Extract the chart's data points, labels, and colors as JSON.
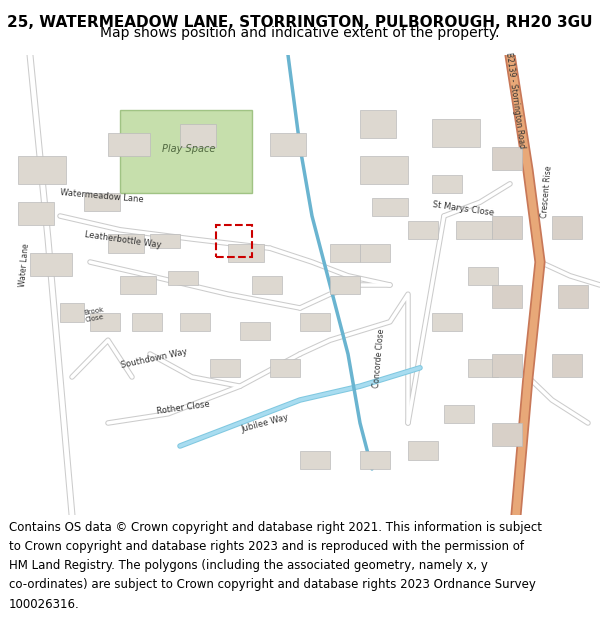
{
  "title_line1": "25, WATERMEADOW LANE, STORRINGTON, PULBOROUGH, RH20 3GU",
  "title_line2": "Map shows position and indicative extent of the property.",
  "footer_text": "Contains OS data © Crown copyright and database right 2021. This information is subject to Crown copyright and database rights 2023 and is reproduced with the permission of HM Land Registry. The polygons (including the associated geometry, namely x, y co-ordinates) are subject to Crown copyright and database rights 2023 Ordnance Survey 100026316.",
  "bg_color": "#ffffff",
  "title_fontsize": 11,
  "subtitle_fontsize": 10,
  "footer_fontsize": 8.5,
  "map_bg": "#f0ece8",
  "road_color_main": "#ffffff",
  "road_color_stroke": "#cccccc",
  "highlight_road_color": "#e8a080",
  "blue_road_color": "#80c8e0",
  "green_area_color": "#c8ddb0",
  "property_outline_color": "#cc0000",
  "building_color": "#ddd8d0",
  "building_stroke": "#bbbbbb",
  "footer_lines": [
    "Contains OS data © Crown copyright and database right 2021. This information is subject",
    "to Crown copyright and database rights 2023 and is reproduced with the permission of",
    "HM Land Registry. The polygons (including the associated geometry, namely x, y",
    "co-ordinates) are subject to Crown copyright and database rights 2023 Ordnance Survey",
    "100026316."
  ]
}
